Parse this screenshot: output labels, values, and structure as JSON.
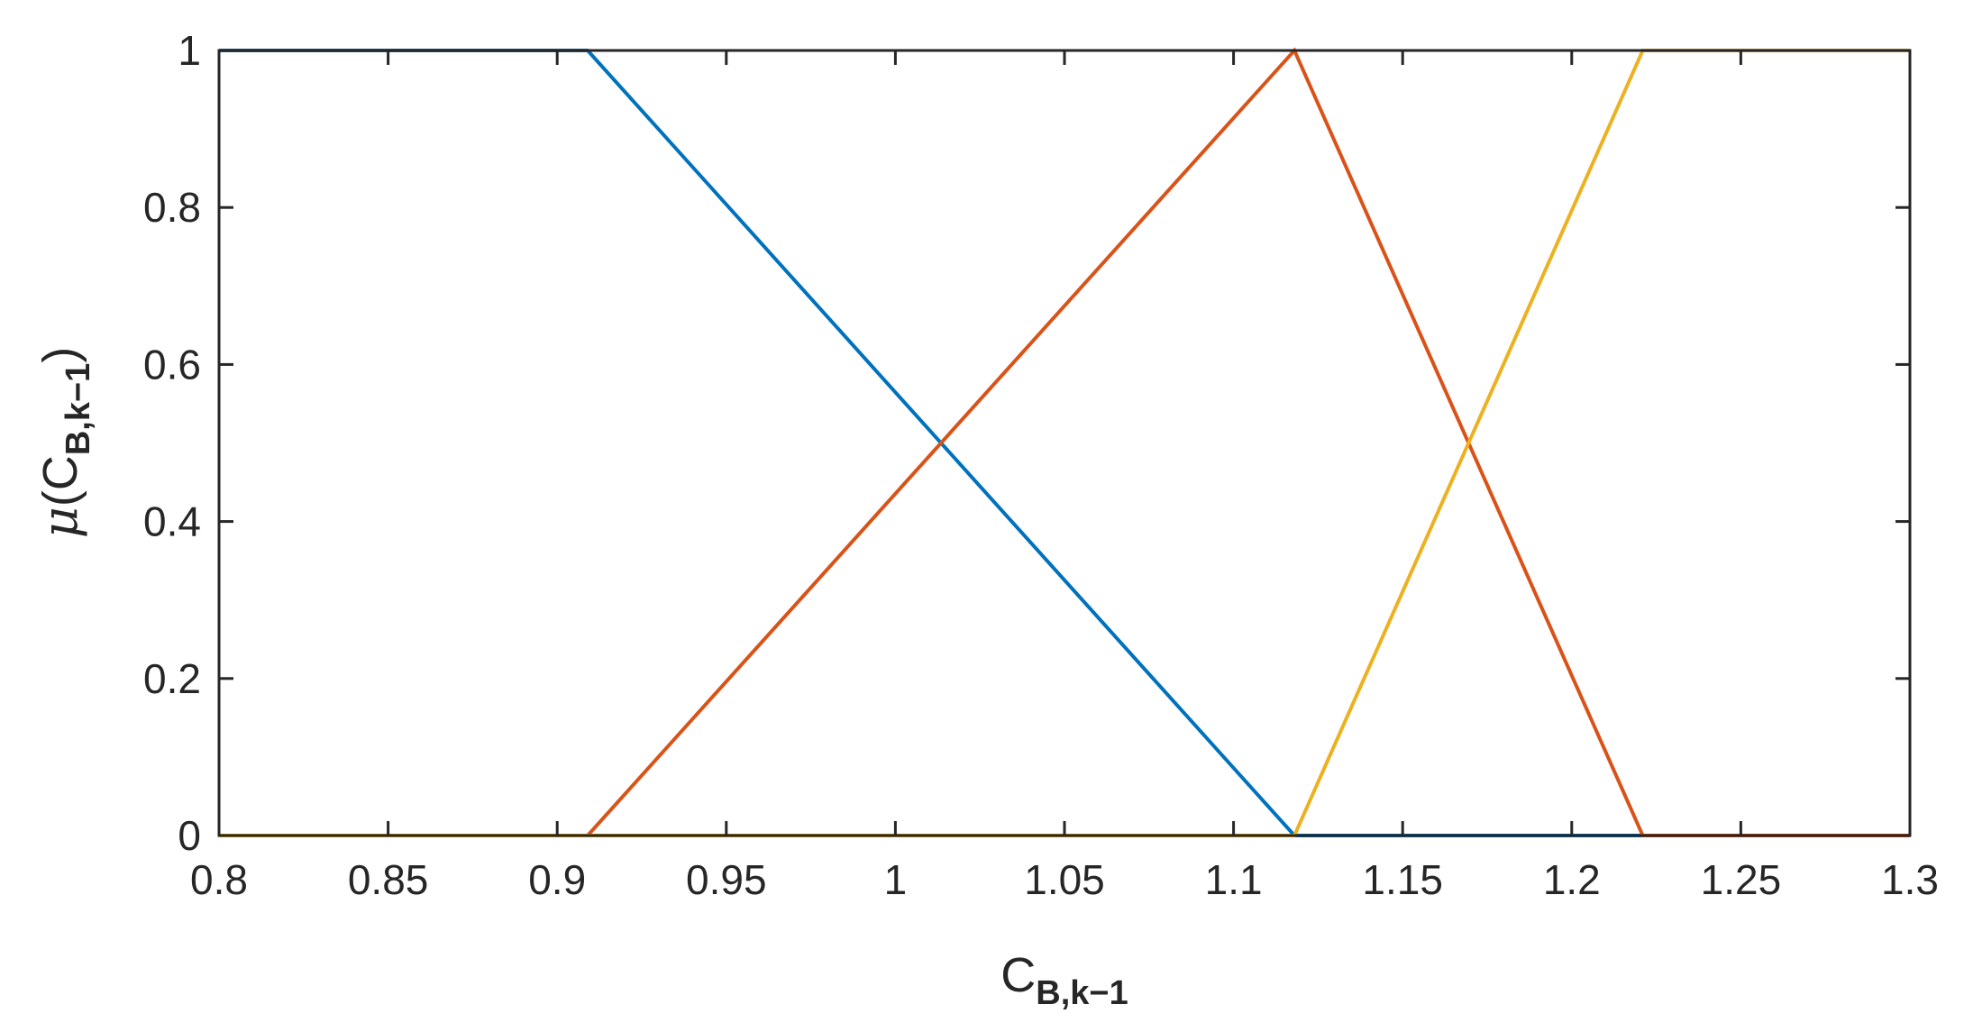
{
  "chart_data": {
    "type": "line",
    "xlabel": {
      "main": "C",
      "sub": "B,k−1"
    },
    "ylabel": {
      "prefix": "μ",
      "open": "(",
      "main": "C",
      "sub": "B,k−1",
      "close": ")"
    },
    "xlim": [
      0.8,
      1.3
    ],
    "ylim": [
      0,
      1
    ],
    "xticks": [
      0.8,
      0.85,
      0.9,
      0.95,
      1,
      1.05,
      1.1,
      1.15,
      1.2,
      1.25,
      1.3
    ],
    "xtick_labels": [
      "0.8",
      "0.85",
      "0.9",
      "0.95",
      "1",
      "1.05",
      "1.1",
      "1.15",
      "1.2",
      "1.25",
      "1.3"
    ],
    "yticks": [
      0,
      0.2,
      0.4,
      0.6,
      0.8,
      1
    ],
    "ytick_labels": [
      "0",
      "0.2",
      "0.4",
      "0.6",
      "0.8",
      "1"
    ],
    "grid": false,
    "box": true,
    "series": [
      {
        "color": "#0072BD",
        "x": [
          0.8,
          0.909,
          1.118,
          1.3
        ],
        "y": [
          1,
          1,
          0,
          0
        ]
      },
      {
        "color": "#D95319",
        "x": [
          0.8,
          0.909,
          1.118,
          1.221,
          1.3
        ],
        "y": [
          0,
          0,
          1,
          0,
          0
        ]
      },
      {
        "color": "#EDB120",
        "x": [
          0.8,
          1.118,
          1.221,
          1.3
        ],
        "y": [
          0,
          0,
          1,
          1
        ]
      }
    ]
  }
}
